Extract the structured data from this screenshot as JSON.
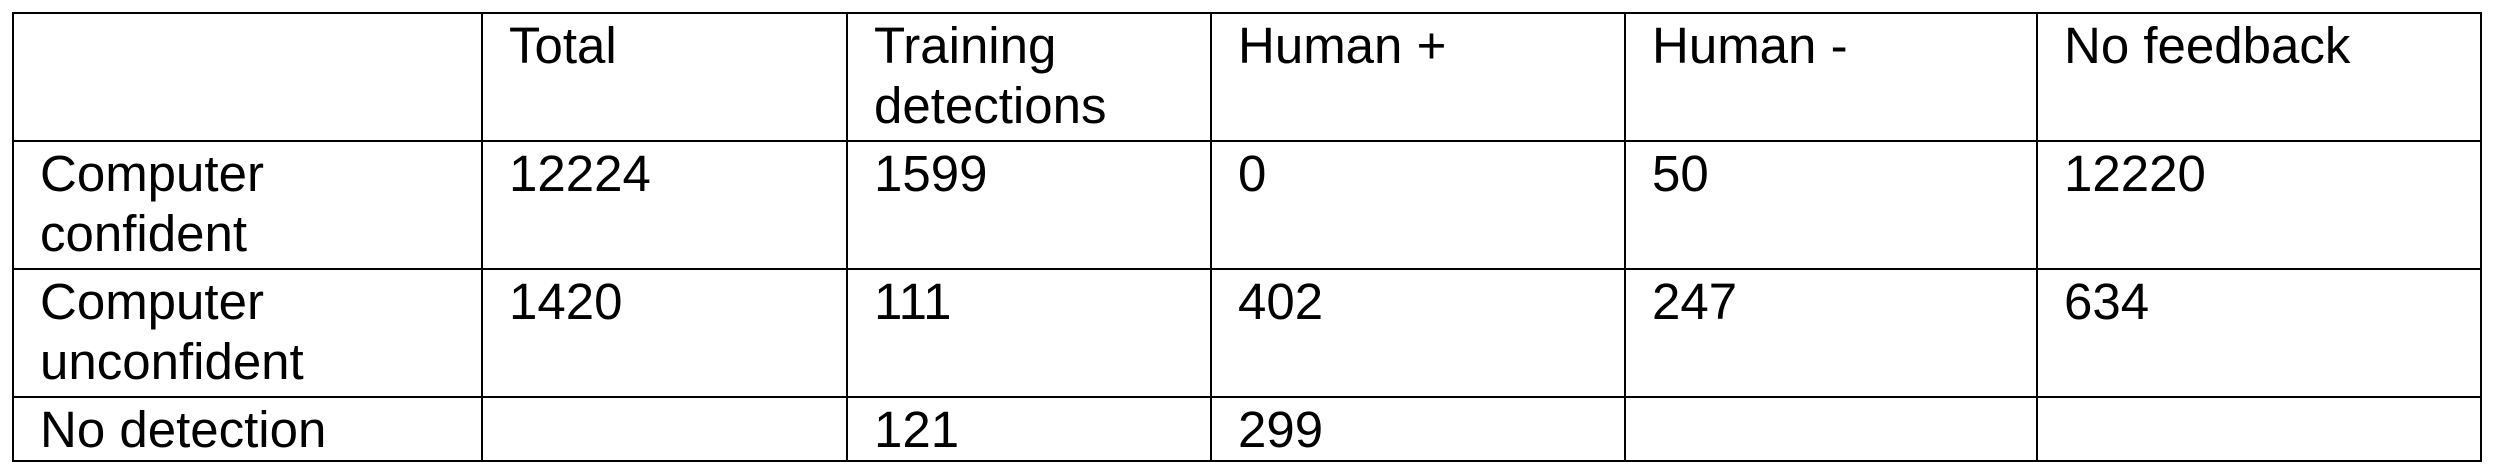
{
  "table": {
    "header": [
      "",
      "Total",
      "Training detections",
      "Human +",
      "Human -",
      "No feedback"
    ],
    "rows": [
      [
        "Computer confident",
        "12224",
        "1599",
        "0",
        "50",
        "12220"
      ],
      [
        "Computer unconfident",
        "1420",
        "111",
        "402",
        "247",
        "634"
      ],
      [
        "No detection",
        "",
        "121",
        "299",
        "",
        ""
      ]
    ]
  }
}
